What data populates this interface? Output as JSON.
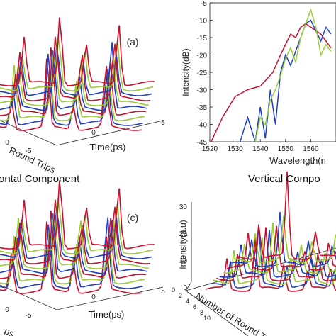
{
  "captions": {
    "horizontal": "ontal Component",
    "vertical": "Vertical Compo"
  },
  "colors": {
    "red": "#c8102e",
    "blue": "#1f3fbf",
    "green": "#9acd32",
    "axis": "#222222"
  },
  "chart_data": [
    {
      "id": "a",
      "type": "line",
      "projection": "3d-waterfall",
      "panel_label": "(a)",
      "xlabel": "Time(ps)",
      "ylabel": "Round Trips",
      "xticks": [
        "-5",
        "0",
        "5"
      ],
      "yticks": [
        "0"
      ],
      "xlim": [
        -5,
        5
      ],
      "trace_count": 10,
      "series": [
        {
          "values": [
            0.4,
            0.9,
            0.3,
            0.8,
            0.4
          ]
        },
        {
          "values": [
            0.5,
            0.9,
            0.4,
            0.7,
            0.5
          ]
        },
        {
          "values": [
            0.7,
            0.6,
            0.5,
            0.6,
            0.6
          ]
        },
        {
          "values": [
            0.5,
            0.9,
            0.3,
            0.7,
            0.5
          ]
        },
        {
          "values": [
            0.4,
            0.8,
            0.4,
            0.9,
            0.4
          ]
        },
        {
          "values": [
            0.5,
            0.7,
            0.5,
            0.6,
            0.4
          ]
        },
        {
          "values": [
            0.6,
            0.8,
            0.6,
            0.7,
            0.5
          ]
        },
        {
          "values": [
            0.5,
            0.6,
            0.4,
            0.5,
            0.6
          ]
        },
        {
          "values": [
            0.4,
            0.7,
            0.5,
            0.6,
            0.4
          ]
        },
        {
          "values": [
            0.6,
            0.9,
            0.5,
            0.8,
            0.5
          ]
        }
      ]
    },
    {
      "id": "b",
      "type": "line",
      "xlabel": "Wavelength(n",
      "ylabel": "Intensity(dB)",
      "xlim": [
        1520,
        1570
      ],
      "ylim": [
        -45,
        -5
      ],
      "xticks": [
        1520,
        1530,
        1540,
        1550,
        1560
      ],
      "yticks": [
        -5,
        -10,
        -15,
        -20,
        -25,
        -30,
        -35,
        -40,
        -45
      ],
      "series": [
        {
          "color": "red",
          "x": [
            1520.5,
            1525,
            1530,
            1535,
            1540,
            1545,
            1548,
            1550,
            1552,
            1554,
            1556,
            1558,
            1560,
            1562,
            1564,
            1566,
            1568
          ],
          "y": [
            -45,
            -38,
            -32,
            -30,
            -29,
            -25,
            -20,
            -17,
            -14,
            -15,
            -12,
            -11,
            -12,
            -13,
            -14,
            -16,
            -18
          ]
        },
        {
          "color": "blue",
          "x": [
            1532,
            1535,
            1538,
            1540,
            1542,
            1544,
            1546,
            1548,
            1550,
            1552,
            1554,
            1556,
            1558,
            1560,
            1562,
            1564,
            1566,
            1568
          ],
          "y": [
            -45,
            -38,
            -45,
            -35,
            -44,
            -30,
            -40,
            -25,
            -20,
            -23,
            -19,
            -15,
            -11,
            -10,
            -13,
            -16,
            -12,
            -14
          ]
        },
        {
          "color": "green",
          "x": [
            1538,
            1540,
            1542,
            1544,
            1546,
            1548,
            1550,
            1552,
            1554,
            1556,
            1558,
            1560,
            1562,
            1564,
            1566,
            1568
          ],
          "y": [
            -45,
            -38,
            -40,
            -33,
            -30,
            -26,
            -21,
            -18,
            -22,
            -15,
            -11,
            -7,
            -12,
            -20,
            -17,
            -19
          ]
        }
      ]
    },
    {
      "id": "c",
      "type": "line",
      "projection": "3d-waterfall",
      "panel_label": "(c)",
      "xlabel": "Time(ps)",
      "ylabel": "ps",
      "xticks": [
        "-5",
        "0",
        "5"
      ],
      "yticks": [
        "0"
      ],
      "xlim": [
        -5,
        5
      ],
      "trace_count": 10,
      "series": [
        {
          "values": [
            0.5,
            0.9,
            0.4,
            0.7,
            0.5
          ]
        },
        {
          "values": [
            0.4,
            0.8,
            0.5,
            0.9,
            0.4
          ]
        },
        {
          "values": [
            0.6,
            0.7,
            0.5,
            0.6,
            0.5
          ]
        },
        {
          "values": [
            0.5,
            0.9,
            0.4,
            0.8,
            0.6
          ]
        },
        {
          "values": [
            0.4,
            0.8,
            0.4,
            0.7,
            0.4
          ]
        },
        {
          "values": [
            0.6,
            0.7,
            0.6,
            0.6,
            0.5
          ]
        },
        {
          "values": [
            0.5,
            0.8,
            0.5,
            0.7,
            0.4
          ]
        },
        {
          "values": [
            0.5,
            0.6,
            0.4,
            0.5,
            0.5
          ]
        },
        {
          "values": [
            0.4,
            0.7,
            0.5,
            0.6,
            0.4
          ]
        },
        {
          "values": [
            0.6,
            0.9,
            0.5,
            0.8,
            0.5
          ]
        }
      ]
    },
    {
      "id": "d",
      "type": "line",
      "projection": "3d-waterfall",
      "ylabel": "Intensity(a.u)",
      "depth_label": "Number of Round Trips",
      "zticks": [
        0,
        10,
        20,
        30
      ],
      "depth_ticks": [
        0,
        2,
        4,
        6,
        8,
        10
      ],
      "xlabel": "",
      "trace_count": 10,
      "series": [
        {
          "values": [
            0.35,
            0.6,
            0.3,
            0.2,
            0.25
          ]
        },
        {
          "values": [
            0.3,
            0.7,
            0.25,
            0.3,
            0.2
          ]
        },
        {
          "values": [
            0.4,
            0.5,
            0.3,
            0.2,
            0.3
          ]
        },
        {
          "values": [
            0.3,
            0.6,
            0.2,
            0.3,
            0.2
          ]
        },
        {
          "values": [
            0.35,
            0.55,
            0.25,
            0.2,
            0.25
          ]
        },
        {
          "values": [
            0.3,
            0.6,
            0.3,
            0.25,
            0.2
          ]
        },
        {
          "values": [
            0.4,
            0.5,
            0.2,
            0.3,
            0.3
          ]
        },
        {
          "values": [
            0.3,
            0.6,
            0.3,
            0.2,
            0.2
          ]
        },
        {
          "values": [
            0.35,
            0.5,
            0.25,
            0.3,
            0.25
          ]
        },
        {
          "values": [
            0.4,
            1.0,
            0.3,
            0.25,
            0.2
          ]
        }
      ]
    }
  ]
}
